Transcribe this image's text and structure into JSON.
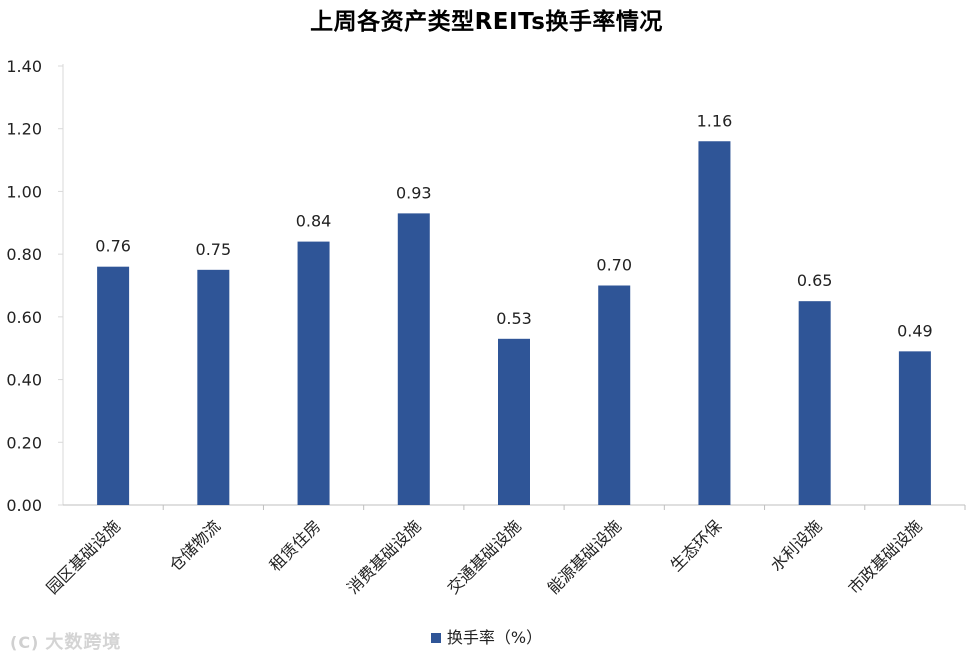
{
  "chart_data": {
    "type": "bar",
    "title": "上周各资产类型REITs换手率情况",
    "categories": [
      "园区基础设施",
      "仓储物流",
      "租赁住房",
      "消费基础设施",
      "交通基础设施",
      "能源基础设施",
      "生态环保",
      "水利设施",
      "市政基础设施"
    ],
    "series": [
      {
        "name": "换手率（%）",
        "values": [
          0.76,
          0.75,
          0.84,
          0.93,
          0.53,
          0.7,
          1.16,
          0.65,
          0.49
        ],
        "labels": [
          "0.76",
          "0.75",
          "0.84",
          "0.93",
          "0.53",
          "0.70",
          "1.16",
          "0.65",
          "0.49"
        ],
        "color": "#2f5597"
      }
    ],
    "ylim": [
      0,
      1.4
    ],
    "yticks": [
      "0.00",
      "0.20",
      "0.40",
      "0.60",
      "0.80",
      "1.00",
      "1.20",
      "1.40"
    ],
    "xlabel": "",
    "ylabel": "",
    "grid": false,
    "legend_position": "bottom"
  },
  "watermark": {
    "logo": "(C)",
    "text": "大数跨境"
  }
}
